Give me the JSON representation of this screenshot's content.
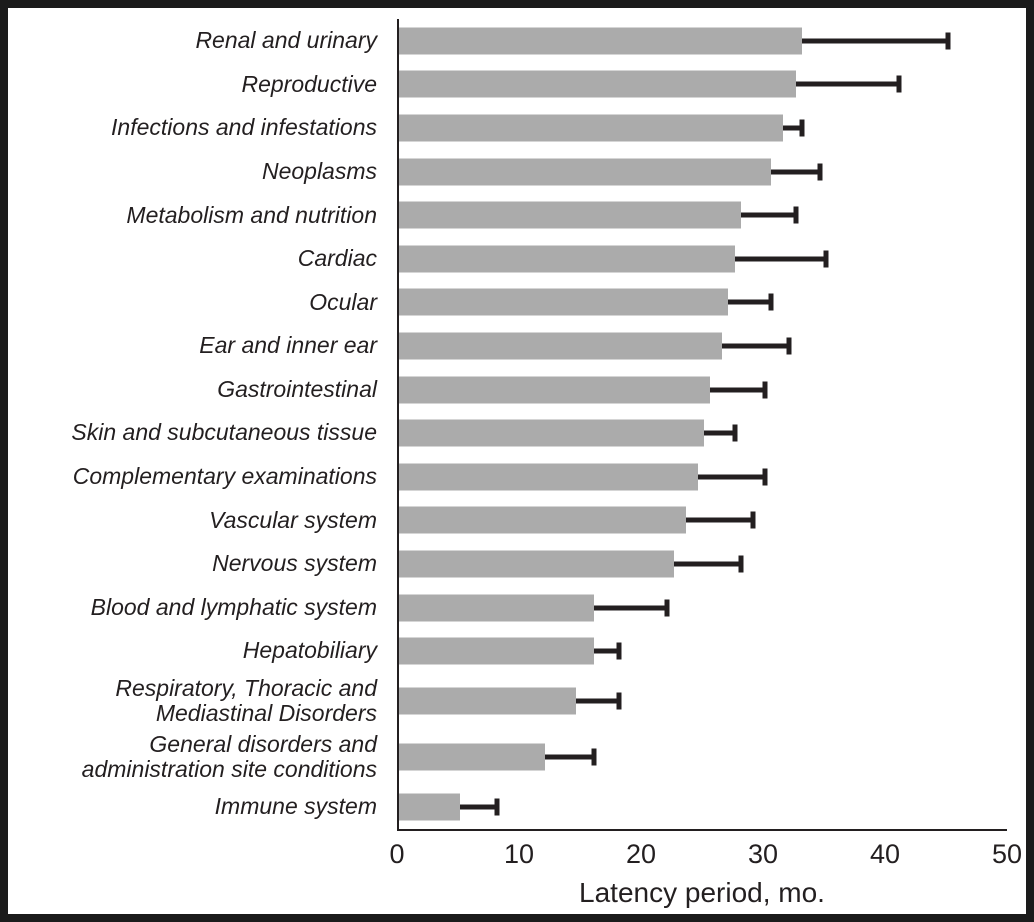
{
  "chart_data": {
    "type": "bar",
    "orientation": "horizontal",
    "xlabel": "Latency period, mo.",
    "xlim": [
      0,
      50
    ],
    "xticks": [
      0,
      10,
      20,
      30,
      40,
      50
    ],
    "grid": false,
    "legend": false,
    "bar_color": "#ababab",
    "error_bar_color": "#231f20",
    "categories": [
      "Renal and urinary",
      "Reproductive",
      "Infections and infestations",
      "Neoplasms",
      "Metabolism and nutrition",
      "Cardiac",
      "Ocular",
      "Ear and inner ear",
      "Gastrointestinal",
      "Skin and subcutaneous tissue",
      "Complementary examinations",
      "Vascular system",
      "Nervous system",
      "Blood and lymphatic system",
      "Hepatobiliary",
      "Respiratory, Thoracic and\nMediastinal Disorders",
      "General disorders and\nadministration site conditions",
      "Immune system"
    ],
    "values": [
      33,
      32.5,
      31.5,
      30.5,
      28,
      27.5,
      27,
      26.5,
      25.5,
      25,
      24.5,
      23.5,
      22.5,
      16,
      16,
      14.5,
      12,
      5
    ],
    "error_upper": [
      45,
      41,
      33,
      34.5,
      32.5,
      35,
      30.5,
      32,
      30,
      27.5,
      30,
      29,
      28,
      22,
      18,
      18,
      16,
      8
    ]
  }
}
